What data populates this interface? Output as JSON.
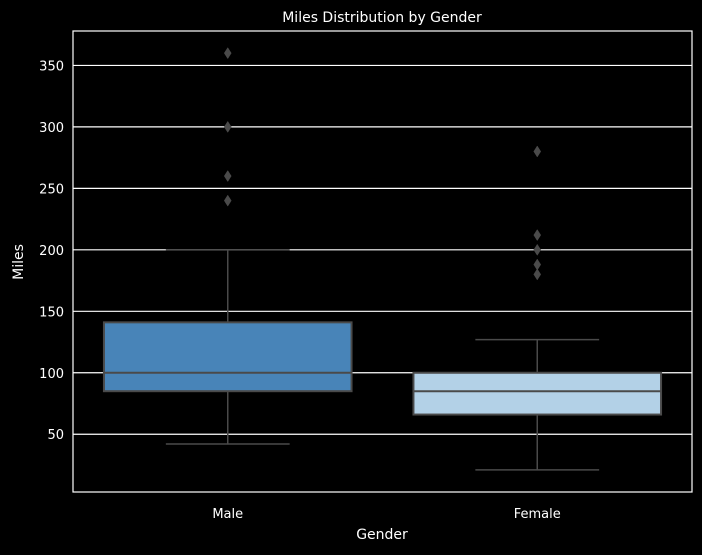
{
  "chart_data": {
    "type": "box",
    "title": "Miles Distribution by Gender",
    "xlabel": "Gender",
    "ylabel": "Miles",
    "categories": [
      "Male",
      "Female"
    ],
    "ylim": [
      3,
      378
    ],
    "yticks": [
      50,
      100,
      150,
      200,
      250,
      300,
      350
    ],
    "grid": "horizontal",
    "boxes": [
      {
        "category": "Male",
        "whisker_low": 42,
        "q1": 85,
        "median": 100,
        "q3": 141,
        "whisker_high": 200,
        "outliers": [
          240,
          260,
          300,
          360
        ],
        "color": "#4884b8"
      },
      {
        "category": "Female",
        "whisker_low": 21,
        "q1": 66,
        "median": 85,
        "q3": 100,
        "whisker_high": 127,
        "outliers": [
          180,
          188,
          200,
          212,
          280
        ],
        "color": "#b3d1e7"
      }
    ],
    "colors": {
      "background": "#000000",
      "axes": "#ffffff",
      "grid": "#ffffff",
      "box_edge": "#4a4a4a",
      "text": "#ffffff"
    }
  }
}
